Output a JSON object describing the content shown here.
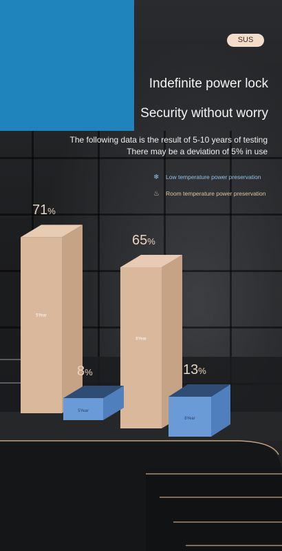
{
  "badge": "SUS",
  "headline": {
    "line1": "Indefinite power lock",
    "line2": "Security without worry"
  },
  "notes": {
    "line1": "The following data is the result of 5-10 years of testing",
    "line2": "There may be a deviation of 5% in use"
  },
  "legend": [
    {
      "icon": "snowflake-icon",
      "glyph": "❄",
      "label": "Low temperature power preservation",
      "color": "#8ec3ea"
    },
    {
      "icon": "flame-icon",
      "glyph": "♨",
      "label": "Room temperature power preservation",
      "color": "#e0c2a8"
    }
  ],
  "colors": {
    "accent_blue": "#1f84bb",
    "room_bar": "#d9b89b",
    "low_bar": "#6b9bd6"
  },
  "chart_data": {
    "type": "bar",
    "categories": [
      "5Year",
      "8Year"
    ],
    "series": [
      {
        "name": "Room temperature power preservation",
        "values": [
          71,
          65
        ]
      },
      {
        "name": "Low temperature power preservation",
        "values": [
          8,
          13
        ]
      }
    ],
    "value_labels": [
      "71%",
      "8%",
      "65%",
      "13%"
    ],
    "bar_labels": [
      "5Year",
      "5Year",
      "8Year",
      "8Year"
    ],
    "ylim": [
      0,
      100
    ],
    "grid": false,
    "legend_position": "top-right"
  }
}
